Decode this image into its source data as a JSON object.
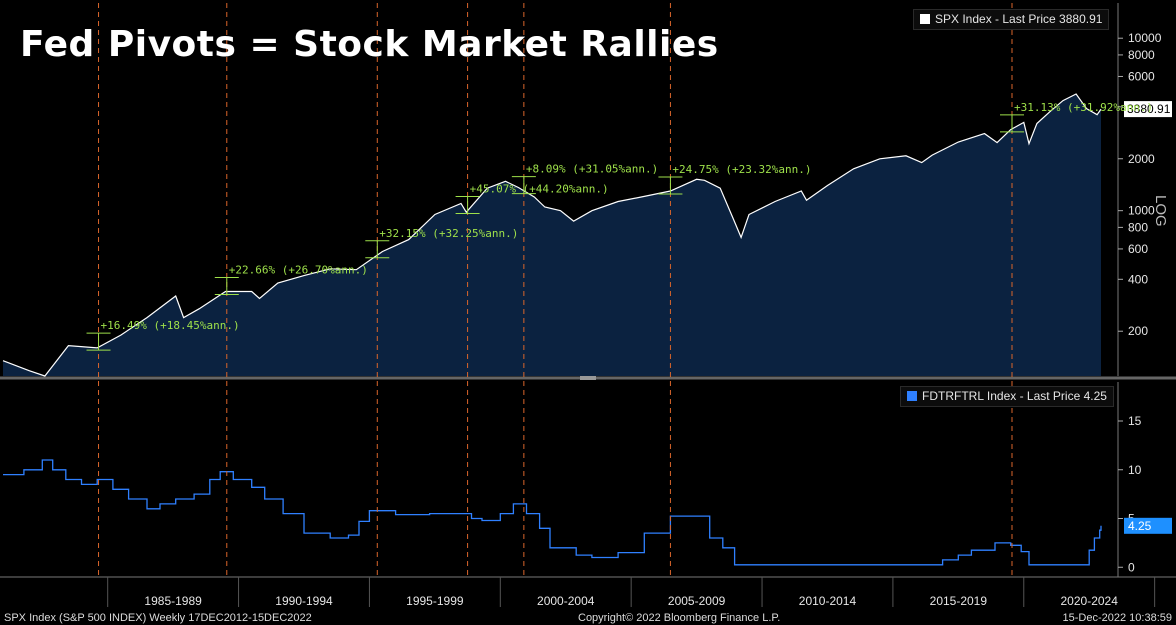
{
  "title": "Fed Pivots = Stock Market Rallies",
  "colors": {
    "background": "#000000",
    "spx_fill": "#0b2240",
    "spx_line": "#ffffff",
    "fed_line": "#2f80ff",
    "pivot_line": "#d9652b",
    "annotation": "#9ee04a",
    "last_price_tag": "#1e90ff"
  },
  "top_panel": {
    "legend": "SPX Index - Last Price 3880.91",
    "axis_label": "LOG",
    "last_price_tag": "3880.91"
  },
  "bottom_panel": {
    "legend": "FDTRFTRL Index - Last Price 4.25",
    "last_price_tag": "4.25"
  },
  "footer": {
    "left": "SPX Index (S&P 500 INDEX)  Weekly 17DEC2012-15DEC2022",
    "center": "Copyright© 2022 Bloomberg Finance L.P.",
    "right": "15-Dec-2022 10:38:59"
  },
  "chart_data": [
    {
      "type": "area",
      "series": [
        {
          "name": "SPX Index",
          "x": [
            1981.0,
            1982.0,
            1982.6,
            1983.5,
            1984.6,
            1985.5,
            1986.5,
            1987.6,
            1987.9,
            1988.5,
            1989.5,
            1990.5,
            1990.8,
            1991.5,
            1992.5,
            1993.5,
            1994.5,
            1995.5,
            1996.5,
            1997.5,
            1998.5,
            1998.7,
            1999.5,
            2000.2,
            2000.7,
            2001.3,
            2001.7,
            2002.3,
            2002.8,
            2003.5,
            2004.5,
            2005.5,
            2006.5,
            2007.5,
            2007.8,
            2008.4,
            2008.9,
            2009.2,
            2009.5,
            2010.5,
            2011.5,
            2011.7,
            2012.5,
            2013.5,
            2014.5,
            2015.5,
            2016.1,
            2016.5,
            2017.5,
            2018.5,
            2018.98,
            2019.5,
            2020.0,
            2020.2,
            2020.5,
            2021.0,
            2021.5,
            2022.0,
            2022.4,
            2022.8,
            2022.95
          ],
          "values": [
            135,
            118,
            110,
            165,
            160,
            190,
            240,
            320,
            240,
            270,
            340,
            340,
            310,
            380,
            420,
            460,
            455,
            580,
            680,
            950,
            1100,
            980,
            1350,
            1480,
            1360,
            1200,
            1050,
            1000,
            870,
            1000,
            1130,
            1210,
            1300,
            1520,
            1500,
            1350,
            900,
            700,
            950,
            1130,
            1300,
            1150,
            1400,
            1750,
            2000,
            2080,
            1900,
            2100,
            2500,
            2800,
            2480,
            2950,
            3250,
            2450,
            3200,
            3750,
            4350,
            4750,
            3900,
            3600,
            3880
          ]
        }
      ],
      "y_scale": "log",
      "yticks": [
        200,
        400,
        600,
        800,
        1000,
        2000,
        4000,
        6000,
        8000,
        10000
      ],
      "ylim": [
        110,
        16000
      ],
      "annotations": [
        "+16.49% (+18.45%ann.)",
        "+22.66% (+26.70%ann.)",
        "+32.15% (+32.25%ann.)",
        "+45.07% (+44.20%ann.)",
        "+8.09% (+31.05%ann.)",
        "+24.75% (+23.32%ann.)",
        "+31.13% (+31.92%ann.)"
      ]
    },
    {
      "type": "line",
      "series": [
        {
          "name": "FDTRFTRL Index",
          "x": [
            1981.0,
            1981.8,
            1982.5,
            1982.9,
            1983.4,
            1984.0,
            1984.6,
            1985.2,
            1985.8,
            1986.5,
            1987.0,
            1987.6,
            1988.3,
            1988.9,
            1989.3,
            1989.8,
            1990.5,
            1991.0,
            1991.7,
            1992.5,
            1993.5,
            1994.2,
            1994.6,
            1995.0,
            1995.5,
            1996.0,
            1997.3,
            1998.5,
            1998.9,
            1999.3,
            2000.0,
            2000.5,
            2001.0,
            2001.5,
            2001.9,
            2002.9,
            2003.5,
            2004.5,
            2005.5,
            2006.5,
            2007.6,
            2008.0,
            2008.5,
            2008.95,
            2015.9,
            2016.9,
            2017.5,
            2018.0,
            2018.9,
            2019.5,
            2019.9,
            2020.2,
            2022.2,
            2022.5,
            2022.7,
            2022.9,
            2022.95
          ],
          "values": [
            9.5,
            10,
            11,
            10,
            9,
            8.5,
            9,
            8,
            7,
            6,
            6.5,
            7,
            7.5,
            9,
            9.8,
            9,
            8.2,
            7,
            5.5,
            3.5,
            3,
            3.3,
            4.7,
            5.8,
            5.8,
            5.4,
            5.5,
            5.5,
            5,
            4.8,
            5.5,
            6.5,
            5.5,
            4,
            2,
            1.25,
            1,
            1.5,
            3.5,
            5.25,
            5.25,
            3,
            2,
            0.25,
            0.25,
            0.75,
            1.25,
            1.75,
            2.5,
            2.25,
            1.6,
            0.25,
            0.25,
            1.75,
            3,
            3.8,
            4.25
          ]
        }
      ],
      "yticks": [
        0,
        5,
        10,
        15
      ],
      "ylim": [
        -1,
        19
      ]
    }
  ],
  "pivot_years": [
    1984.65,
    1989.55,
    1995.3,
    1998.75,
    2000.9,
    2006.5,
    2019.55
  ],
  "xticks": [
    "1985-1989",
    "1990-1994",
    "1995-1999",
    "2000-2004",
    "2005-2009",
    "2010-2014",
    "2015-2019",
    "2020-2024"
  ]
}
